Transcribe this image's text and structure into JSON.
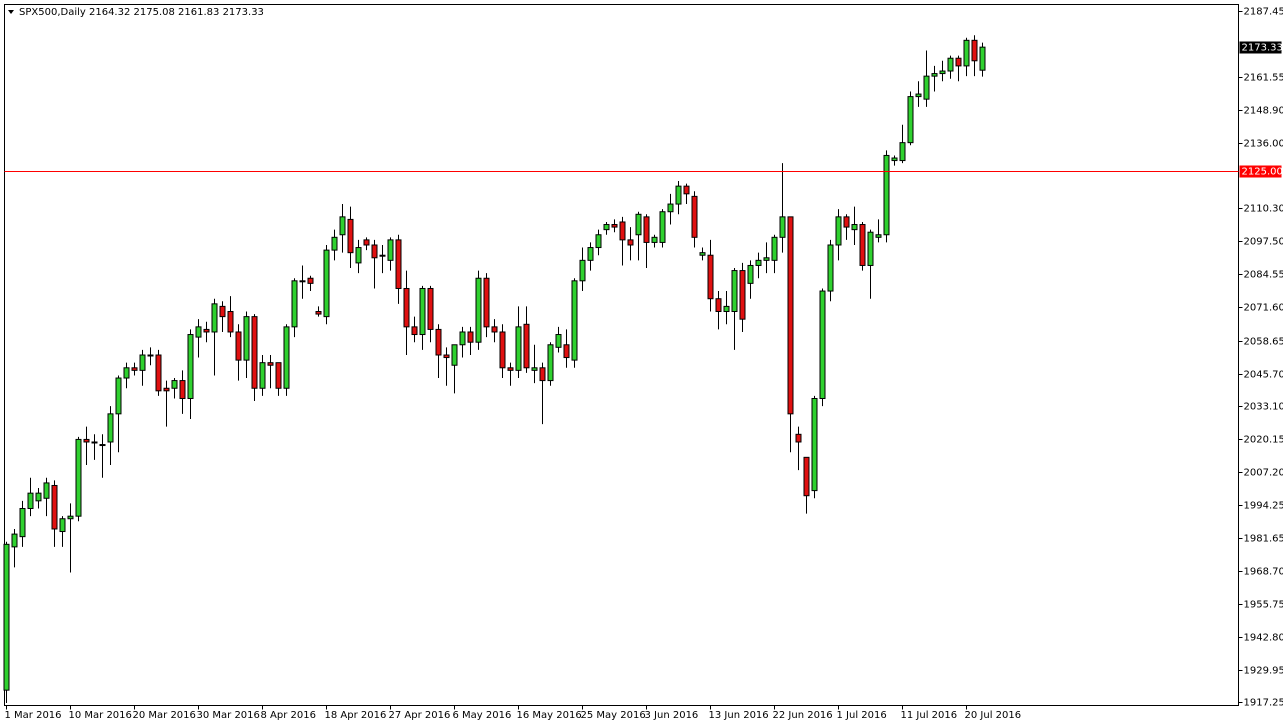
{
  "chart_data": {
    "type": "candlestick",
    "title": "SPX500,Daily  2164.32 2175.08 2161.83 2173.33",
    "x": [
      "1 Mar 2016",
      null,
      null,
      null,
      null,
      null,
      null,
      null,
      "10 Mar 2016",
      null,
      null,
      null,
      null,
      null,
      null,
      null,
      "20 Mar 2016",
      null,
      null,
      null,
      null,
      null,
      null,
      null,
      "30 Mar 2016",
      null,
      null,
      null,
      null,
      null,
      null,
      null,
      "8 Apr 2016",
      null,
      null,
      null,
      null,
      null,
      null,
      null,
      "18 Apr 2016",
      null,
      null,
      null,
      null,
      null,
      null,
      null,
      "27 Apr 2016",
      null,
      null,
      null,
      null,
      null,
      null,
      null,
      "6 May 2016",
      null,
      null,
      null,
      null,
      null,
      null,
      null,
      "16 May 2016",
      null,
      null,
      null,
      null,
      null,
      null,
      null,
      "25 May 2016",
      null,
      null,
      null,
      null,
      null,
      null,
      null,
      "3 Jun 2016",
      null,
      null,
      null,
      null,
      null,
      null,
      null,
      "13 Jun 2016",
      null,
      null,
      null,
      null,
      null,
      null,
      null,
      "22 Jun 2016",
      null,
      null,
      null,
      null,
      null,
      null,
      null,
      "1 Jul 2016",
      null,
      null,
      null,
      null,
      null,
      null,
      null,
      "11 Jul 2016",
      null,
      null,
      null,
      null,
      null,
      null,
      null,
      "20 Jul 2016",
      null,
      null
    ],
    "open": [
      1922,
      1978,
      1982,
      1993,
      1996,
      1997,
      2002,
      1984,
      1989,
      1990,
      2020,
      2019,
      2018,
      2019,
      2030,
      2044,
      2048,
      2047,
      2053,
      2053,
      2040,
      2040,
      2043,
      2036,
      2060,
      2063,
      2062,
      2072,
      2070,
      2062,
      2051,
      2068,
      2040,
      2050,
      2050,
      2040,
      2064,
      2082,
      2083,
      2070,
      2068,
      2094,
      2100,
      2106,
      2089,
      2098,
      2096,
      2092,
      2090,
      2098,
      2079,
      2064,
      2061,
      2079,
      2063,
      2053,
      2049,
      2057,
      2062,
      2058,
      2083,
      2064,
      2062,
      2048,
      2047,
      2065,
      2047,
      2048,
      2043,
      2056,
      2057,
      2051,
      2082,
      2090,
      2095,
      2102,
      2104,
      2105,
      2098,
      2100,
      2107,
      2097,
      2097,
      2109,
      2112,
      2119,
      2115,
      2092,
      2092,
      2075,
      2070,
      2070,
      2086,
      2081,
      2088,
      2090,
      2090,
      2099,
      2107,
      2022,
      2013,
      2000,
      2036,
      2078,
      2096,
      2107,
      2102,
      2104,
      2088,
      2099,
      2100,
      2129,
      2129,
      2136,
      2154,
      2153,
      2162,
      2163,
      2164,
      2169,
      2166,
      2176,
      2164.32
    ],
    "high": [
      1980,
      1985,
      1996,
      2005,
      2001,
      2005,
      2004,
      1990,
      1995,
      2021,
      2025,
      2022,
      2022,
      2033,
      2045,
      2050,
      2050,
      2055,
      2056,
      2055,
      2043,
      2044,
      2047,
      2063,
      2067,
      2066,
      2075,
      2074,
      2076,
      2065,
      2070,
      2069,
      2053,
      2053,
      2050,
      2065,
      2083,
      2088,
      2084,
      2072,
      2096,
      2102,
      2112,
      2111,
      2098,
      2099,
      2098,
      2096,
      2099,
      2100,
      2086,
      2068,
      2080,
      2080,
      2065,
      2056,
      2057,
      2064,
      2064,
      2086,
      2085,
      2067,
      2065,
      2050,
      2072,
      2072,
      2057,
      2050,
      2058,
      2064,
      2063,
      2083,
      2095,
      2097,
      2102,
      2105,
      2106,
      2107,
      2103,
      2109,
      2108,
      2100,
      2110,
      2116,
      2121,
      2120,
      2117,
      2095,
      2098,
      2078,
      2078,
      2087,
      2089,
      2090,
      2093,
      2097,
      2100,
      2128,
      2107,
      2025,
      2013,
      2037,
      2079,
      2098,
      2110,
      2108,
      2111,
      2105,
      2102,
      2106,
      2133,
      2131,
      2143,
      2156,
      2160,
      2172,
      2166,
      2168,
      2170,
      2170,
      2177,
      2178,
      2175.08
    ],
    "low": [
      1917,
      1970,
      1978,
      1990,
      1993,
      1990,
      1978,
      1978,
      1968,
      1988,
      2010,
      2012,
      2005,
      2010,
      2015,
      2040,
      2045,
      2041,
      2049,
      2037,
      2025,
      2036,
      2030,
      2028,
      2052,
      2058,
      2045,
      2062,
      2060,
      2043,
      2044,
      2035,
      2037,
      2040,
      2037,
      2037,
      2060,
      2075,
      2078,
      2068,
      2065,
      2090,
      2093,
      2087,
      2085,
      2094,
      2079,
      2085,
      2086,
      2073,
      2053,
      2058,
      2055,
      2058,
      2044,
      2041,
      2038,
      2052,
      2053,
      2055,
      2060,
      2058,
      2044,
      2041,
      2044,
      2046,
      2042,
      2026,
      2041,
      2054,
      2048,
      2048,
      2078,
      2086,
      2092,
      2100,
      2101,
      2088,
      2090,
      2090,
      2087,
      2095,
      2095,
      2104,
      2108,
      2112,
      2095,
      2090,
      2070,
      2063,
      2065,
      2055,
      2062,
      2075,
      2083,
      2085,
      2085,
      2093,
      2015,
      2008,
      1991,
      1997,
      2033,
      2074,
      2090,
      2098,
      2096,
      2086,
      2075,
      2097,
      2097,
      2127,
      2128,
      2135,
      2150,
      2150,
      2156,
      2160,
      2161,
      2160,
      2162,
      2162,
      2161.83
    ],
    "close": [
      1979,
      1983,
      1993,
      1999,
      1999,
      2003,
      1985,
      1989,
      1990,
      2020,
      2019,
      2019,
      2018,
      2030,
      2044,
      2048,
      2047,
      2053,
      2053,
      2039,
      2039,
      2043,
      2036,
      2061,
      2064,
      2062,
      2073,
      2068,
      2062,
      2051,
      2068,
      2040,
      2050,
      2049,
      2040,
      2064,
      2082,
      2082,
      2081,
      2069,
      2094,
      2099,
      2107,
      2093,
      2095,
      2096,
      2091,
      2092,
      2098,
      2079,
      2064,
      2061,
      2079,
      2063,
      2053,
      2052,
      2057,
      2062,
      2058,
      2083,
      2064,
      2062,
      2048,
      2047,
      2064,
      2048,
      2048,
      2043,
      2057,
      2061,
      2052,
      2082,
      2090,
      2095,
      2100,
      2104,
      2103,
      2098,
      2096,
      2108,
      2097,
      2099,
      2109,
      2112,
      2119,
      2116,
      2099,
      2093,
      2075,
      2070,
      2072,
      2086,
      2067,
      2088,
      2090,
      2091,
      2099,
      2107,
      2030,
      2019,
      1998,
      2036,
      2078,
      2096,
      2107,
      2103,
      2104,
      2088,
      2101,
      2100,
      2131,
      2130,
      2136,
      2154,
      2155,
      2162,
      2163,
      2164,
      2169,
      2166,
      2176,
      2168,
      2173.33
    ],
    "up_color": "#2fd12f",
    "down_color": "#e01010",
    "ylim": [
      1916,
      2190
    ],
    "yticks": [
      2187.45,
      2161.55,
      {
        "value": 2148.9,
        "label": "2148.90"
      },
      {
        "value": 2136,
        "label": "2136.00"
      },
      {
        "value": 2110.3,
        "label": "2110.30"
      },
      {
        "value": 2097.5,
        "label": "2097.50"
      },
      2084.55,
      {
        "value": 2071.6,
        "label": "2071.60"
      },
      2058.65,
      {
        "value": 2045.7,
        "label": "2045.70"
      },
      {
        "value": 2033.1,
        "label": "2033.10"
      },
      2020.15,
      {
        "value": 2007.2,
        "label": "2007.20"
      },
      1994.25,
      1981.65,
      {
        "value": 1968.7,
        "label": "1968.70"
      },
      1955.75,
      {
        "value": 1942.8,
        "label": "1942.80"
      },
      1929.95,
      1917.25
    ],
    "hline": {
      "value": 2125,
      "label": "2125.00",
      "color": "#ff0000"
    }
  }
}
